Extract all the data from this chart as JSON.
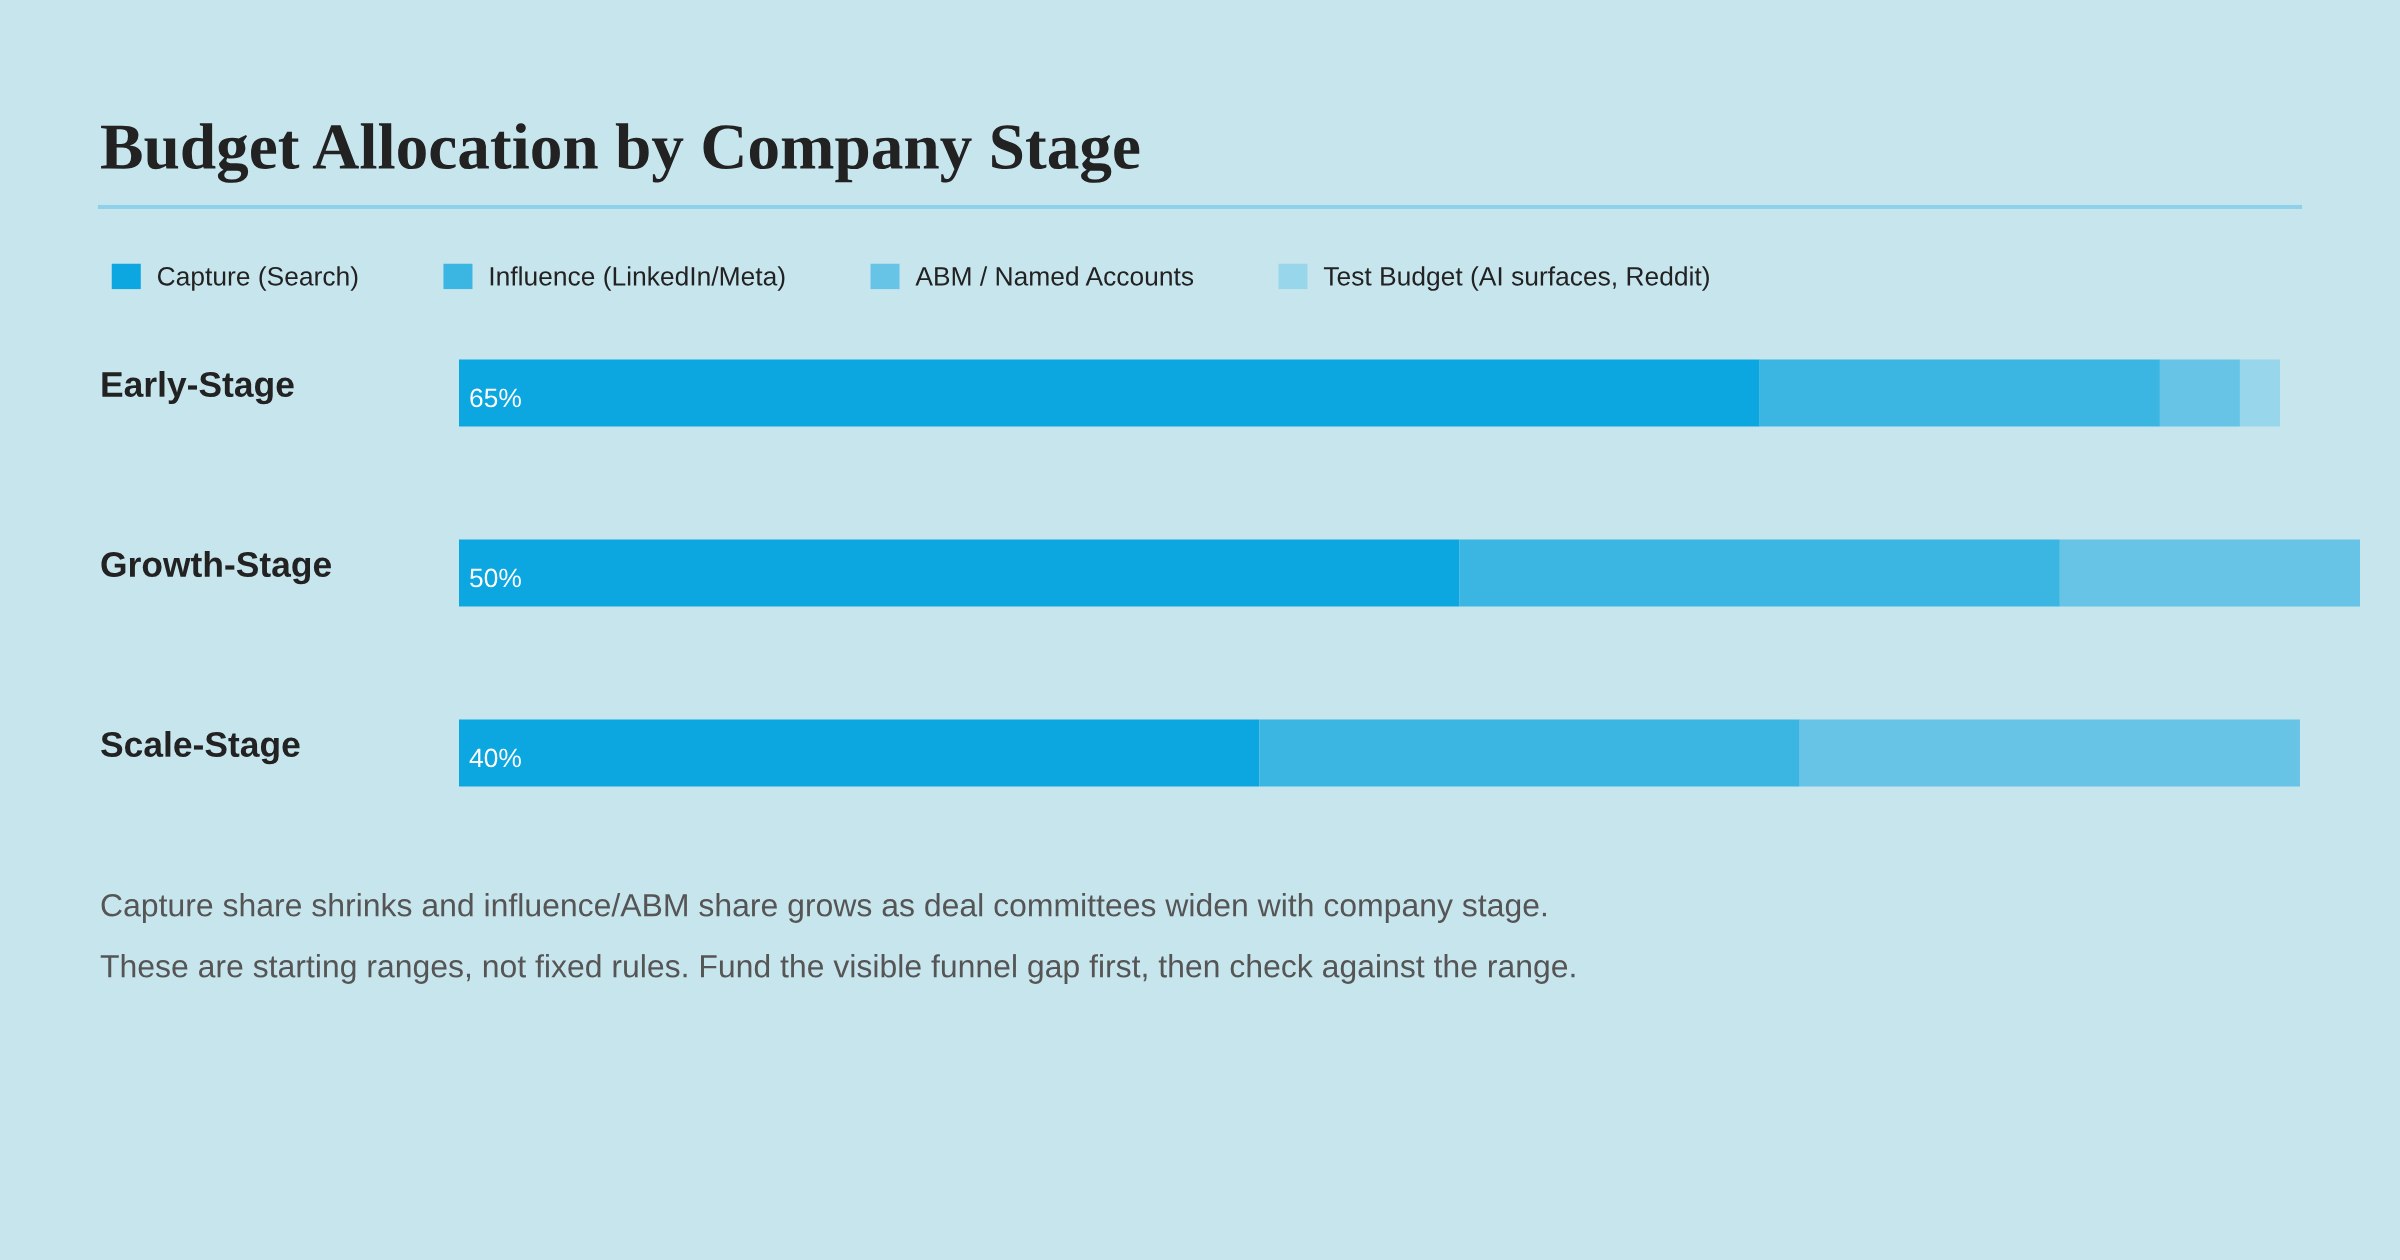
{
  "chart_data": {
    "type": "bar",
    "orientation": "horizontal",
    "stacked": true,
    "title": "Budget Allocation by Company Stage",
    "categories": [
      "Early-Stage",
      "Growth-Stage",
      "Scale-Stage"
    ],
    "series": [
      {
        "name": "Capture (Search)",
        "color": "#0ca7e0",
        "values": [
          65,
          50,
          40
        ],
        "value_labels": [
          "65%",
          "50%",
          "40%"
        ]
      },
      {
        "name": "Influence (LinkedIn/Meta)",
        "color": "#3bb5e2",
        "values": [
          20,
          30,
          27
        ]
      },
      {
        "name": "ABM / Named Accounts",
        "color": "#67c4e6",
        "values": [
          4,
          15,
          25
        ]
      },
      {
        "name": "Test Budget (AI surfaces, Reddit)",
        "color": "#98d6eb",
        "values": [
          2,
          0,
          0
        ]
      }
    ],
    "xlim": [
      0,
      95
    ],
    "legend": "top left",
    "annotations": [
      "Capture share shrinks and influence/ABM share grows as deal committees widen with company stage.",
      "These are starting ranges, not fixed rules. Fund the visible funnel gap first, then check against the range."
    ]
  }
}
